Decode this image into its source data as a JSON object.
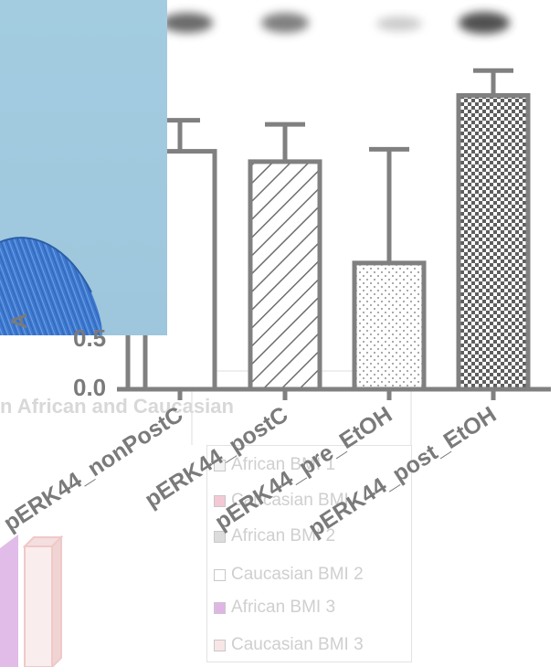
{
  "chart_data": {
    "type": "bar",
    "categories": [
      "pERK44_nonPostC",
      "pERK44_postC",
      "pERK44_pre_EtOH",
      "pERK44_post_EtOH"
    ],
    "values": [
      1.15,
      1.1,
      0.61,
      1.42
    ],
    "errors": [
      0.15,
      0.18,
      0.55,
      0.12
    ],
    "bar_patterns": [
      "none",
      "diagonal-stripes",
      "dots",
      "checkerboard"
    ],
    "ytick_labels": [
      "0.0",
      "0.5"
    ],
    "ylabel_fragment": "A",
    "ylim": [
      0,
      1.55
    ],
    "colors": {
      "bar_stroke": "#808080",
      "bar_fill": "#ffffff",
      "pattern": "#6e6e6e"
    }
  },
  "background": {
    "title_fragment": "n African and Caucasian",
    "legend_items": [
      {
        "label": "African BMI 1",
        "color": "#f2f2f2"
      },
      {
        "label": "Caucasian BMI",
        "color": "#f4c9d6"
      },
      {
        "label": "African BMI 2",
        "color": "#dcdcdc"
      },
      {
        "label": "Caucasian BMI 2",
        "color": "#ffffff"
      },
      {
        "label": "African BMI 3",
        "color": "#e0b5e6"
      },
      {
        "label": "Caucasian BMI 3",
        "color": "#f8e6e6"
      }
    ]
  }
}
